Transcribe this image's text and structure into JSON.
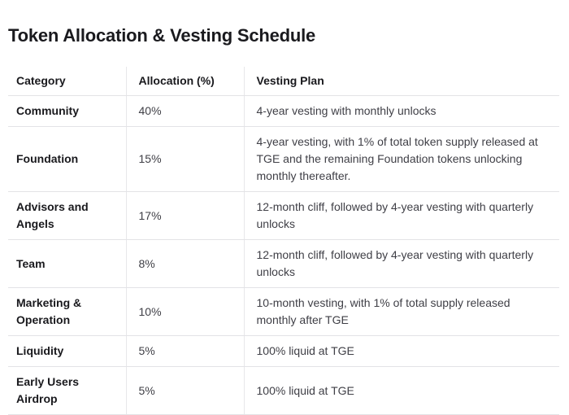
{
  "page_title": "Token Allocation & Vesting Schedule",
  "table": {
    "headers": [
      "Category",
      "Allocation (%)",
      "Vesting Plan"
    ],
    "rows": [
      {
        "category": "Community",
        "allocation": "40%",
        "vesting": "4-year vesting with monthly unlocks"
      },
      {
        "category": "Foundation",
        "allocation": "15%",
        "vesting": "4-year vesting, with 1% of total token supply released at TGE and the remaining Foundation tokens unlocking monthly thereafter."
      },
      {
        "category": "Advisors and Angels",
        "allocation": "17%",
        "vesting": "12-month cliff, followed by 4-year vesting with quarterly unlocks"
      },
      {
        "category": "Team",
        "allocation": "8%",
        "vesting": "12-month cliff, followed by 4-year vesting with quarterly unlocks"
      },
      {
        "category": "Marketing & Operation",
        "allocation": "10%",
        "vesting": "10-month vesting, with 1% of total supply released monthly after TGE"
      },
      {
        "category": "Liquidity",
        "allocation": "5%",
        "vesting": "100% liquid at TGE"
      },
      {
        "category": "Early Users Airdrop",
        "allocation": "5%",
        "vesting": "100% liquid at TGE"
      }
    ]
  },
  "colors": {
    "background": "#ffffff",
    "heading_text": "#1a1a1e",
    "body_text": "#3f3f46",
    "border": "#e3e3e6"
  }
}
